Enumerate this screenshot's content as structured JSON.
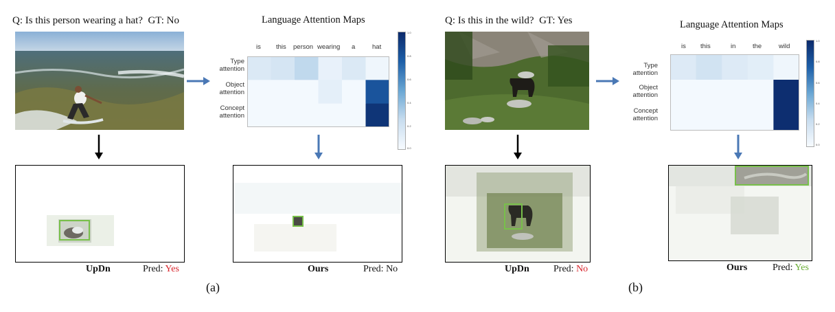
{
  "panel_a": {
    "question": "Q: Is this person wearing a hat?",
    "gt": "GT: No",
    "heatmap_title": "Language Attention Maps",
    "words": [
      "is",
      "this",
      "person",
      "wearing",
      "a",
      "hat"
    ],
    "rows": [
      "Type\nattention",
      "Object\nattention",
      "Concept\nattention"
    ],
    "weights": [
      [
        0.15,
        0.18,
        0.27,
        0.08,
        0.15,
        0.04
      ],
      [
        0.02,
        0.02,
        0.02,
        0.1,
        0.02,
        0.8
      ],
      [
        0.02,
        0.02,
        0.02,
        0.02,
        0.02,
        0.95
      ]
    ],
    "colorbar_ticks": [
      "1.0",
      "0.8",
      "0.6",
      "0.4",
      "0.2",
      "0.0"
    ],
    "left_caption": {
      "model": "UpDn",
      "pred_label": "Pred:",
      "pred_value": "Yes"
    },
    "right_caption": {
      "model": "Ours",
      "pred_label": "Pred:",
      "pred_value": "No"
    },
    "label": "(a)"
  },
  "panel_b": {
    "question": "Q: Is this in the wild?",
    "gt": "GT: Yes",
    "heatmap_title": "Language Attention Maps",
    "words": [
      "is",
      "this",
      "in",
      "the",
      "wild"
    ],
    "rows": [
      "Type\nattention",
      "Object\nattention",
      "Concept\nattention"
    ],
    "weights": [
      [
        0.14,
        0.2,
        0.14,
        0.11,
        0.04
      ],
      [
        0.02,
        0.02,
        0.02,
        0.02,
        0.98
      ],
      [
        0.02,
        0.02,
        0.02,
        0.02,
        0.98
      ]
    ],
    "colorbar_ticks": [
      "1.0",
      "0.8",
      "0.6",
      "0.4",
      "0.2",
      "0.0"
    ],
    "left_caption": {
      "model": "UpDn",
      "pred_label": "Pred:",
      "pred_value": "No"
    },
    "right_caption": {
      "model": "Ours",
      "pred_label": "Pred:",
      "pred_value": "Yes"
    },
    "label": "(b)"
  },
  "colors": {
    "wrong": "#d8232a",
    "right": "#6aae35",
    "arrow": "#4a78b5",
    "box": "#78c04a"
  }
}
